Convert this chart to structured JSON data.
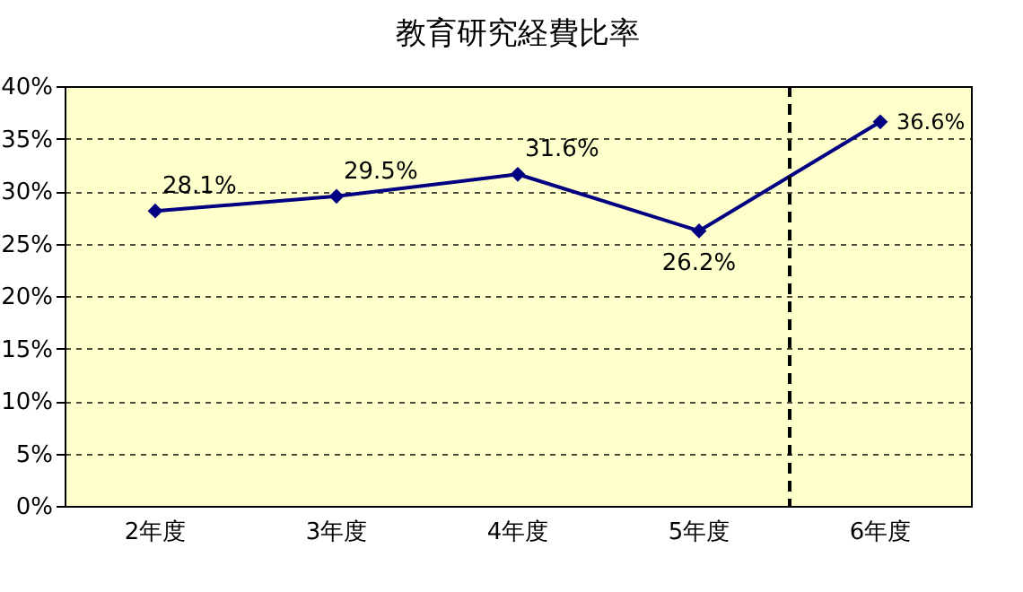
{
  "chart_data": {
    "type": "line",
    "title": "教育研究経費比率",
    "categories": [
      "2年度",
      "3年度",
      "4年度",
      "5年度",
      "6年度"
    ],
    "series": [
      {
        "color": "#000080",
        "values": [
          28.1,
          29.5,
          31.6,
          26.2,
          36.6
        ]
      }
    ],
    "value_labels": [
      "28.1%",
      "29.5%",
      "31.6%",
      "26.2%",
      "36.6%"
    ],
    "ylim": [
      0,
      40
    ],
    "yticks": [
      {
        "value": 0,
        "label": "0%"
      },
      {
        "value": 5,
        "label": "5%"
      },
      {
        "value": 10,
        "label": "10%"
      },
      {
        "value": 15,
        "label": "15%"
      },
      {
        "value": 20,
        "label": "20%"
      },
      {
        "value": 25,
        "label": "25%"
      },
      {
        "value": 30,
        "label": "30%"
      },
      {
        "value": 35,
        "label": "35%"
      },
      {
        "value": 40,
        "label": "40%"
      }
    ],
    "ref_lines": [
      {
        "axis": "x",
        "value": "6年度",
        "line_style": "dashed",
        "color": "#000000"
      }
    ],
    "grid": "y",
    "marker": "diamond",
    "line_style": "solid"
  }
}
